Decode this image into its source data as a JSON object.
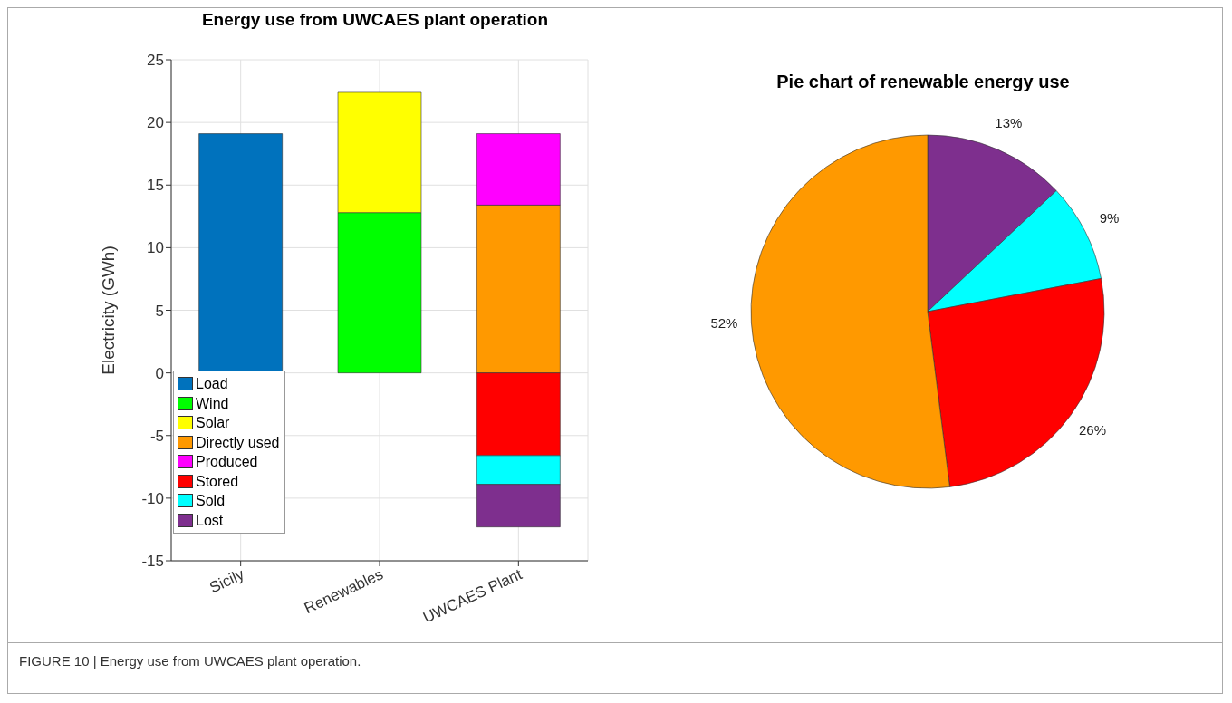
{
  "chart_data": [
    {
      "type": "bar",
      "title": "Energy use from UWCAES plant operation",
      "ylabel": "Electricity (GWh)",
      "categories": [
        "Sicily",
        "Renewables",
        "UWCAES Plant"
      ],
      "stacked": true,
      "ylim": [
        -15,
        25
      ],
      "yticks": [
        -15,
        -10,
        -5,
        0,
        5,
        10,
        15,
        20,
        25
      ],
      "grid": true,
      "legend": "bottom left",
      "annotations": [
        "FIGURE 10 | Energy use from UWCAES plant operation."
      ],
      "series": [
        {
          "name": "Load",
          "color": "#0072bd",
          "values": [
            19.1,
            null,
            null
          ]
        },
        {
          "name": "Wind",
          "color": "#00ff00",
          "values": [
            null,
            12.8,
            null
          ]
        },
        {
          "name": "Solar",
          "color": "#ffff00",
          "values": [
            null,
            9.6,
            null
          ]
        },
        {
          "name": "Directly used",
          "color": "#ff9900",
          "values": [
            null,
            null,
            13.4
          ]
        },
        {
          "name": "Produced",
          "color": "#ff00ff",
          "values": [
            null,
            null,
            5.7
          ]
        },
        {
          "name": "Stored",
          "color": "#ff0000",
          "values": [
            null,
            null,
            -6.6
          ]
        },
        {
          "name": "Sold",
          "color": "#00ffff",
          "values": [
            null,
            null,
            -2.3
          ]
        },
        {
          "name": "Lost",
          "color": "#7e2f8e",
          "values": [
            null,
            null,
            -3.4
          ]
        }
      ]
    },
    {
      "type": "pie",
      "title": "Pie chart of renewable energy use",
      "categories": [
        null,
        null,
        null,
        null
      ],
      "values": [
        13,
        9,
        26,
        52
      ],
      "value_labels": [
        "13%",
        "9%",
        "26%",
        "52%"
      ],
      "colors": [
        "#7e2f8e",
        "#00ffff",
        "#ff0000",
        "#ff9900"
      ]
    }
  ]
}
